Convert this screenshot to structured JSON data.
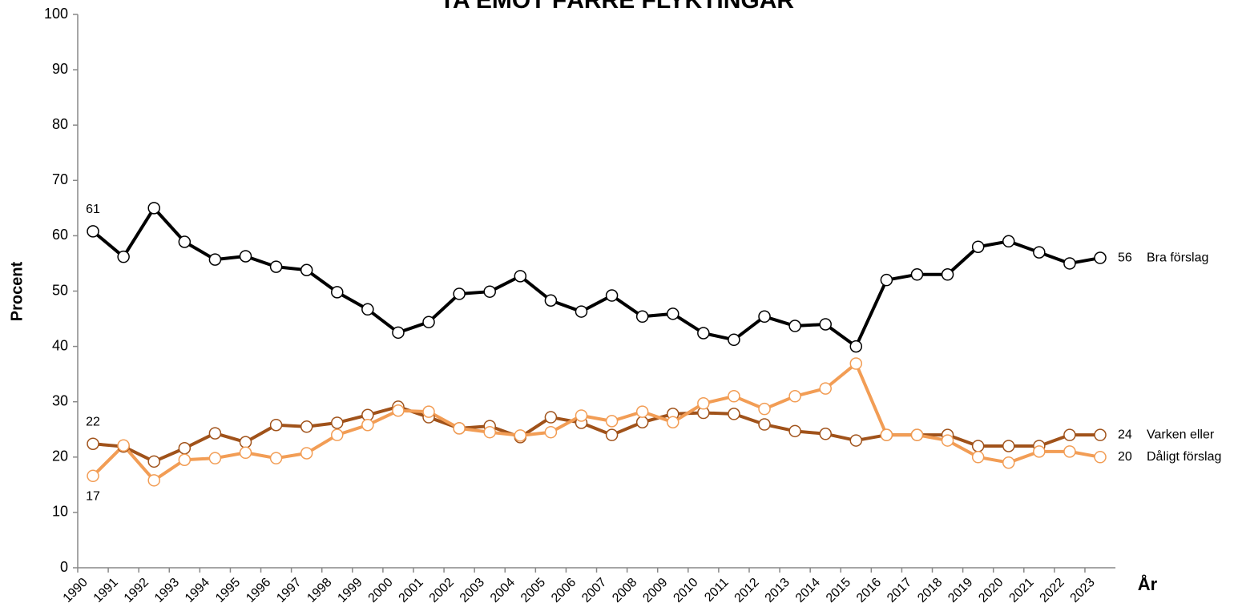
{
  "chart_data": {
    "type": "line",
    "title": "TA EMOT FÄRRE FLYKTINGAR",
    "x_label": "År",
    "y_label": "Procent",
    "categories": [
      "1990",
      "1991",
      "1992",
      "1993",
      "1994",
      "1995",
      "1996",
      "1997",
      "1998",
      "1999",
      "2000",
      "2001",
      "2002",
      "2003",
      "2004",
      "2005",
      "2006",
      "2007",
      "2008",
      "2009",
      "2010",
      "2011",
      "2012",
      "2013",
      "2014",
      "2015",
      "2016",
      "2017",
      "2018",
      "2019",
      "2020",
      "2021",
      "2022",
      "2023"
    ],
    "ylim": [
      0,
      100
    ],
    "yticks": [
      0,
      10,
      20,
      30,
      40,
      50,
      60,
      70,
      80,
      90,
      100
    ],
    "grid": false,
    "series": [
      {
        "name": "Bra förslag",
        "color": "#000000",
        "start_label": "61",
        "end_label": "56",
        "values": [
          60.8,
          56.2,
          65,
          58.9,
          55.7,
          56.3,
          54.4,
          53.8,
          49.8,
          46.7,
          42.5,
          44.4,
          49.5,
          49.9,
          52.7,
          48.3,
          46.3,
          49.2,
          45.4,
          45.9,
          42.4,
          41.2,
          45.4,
          43.7,
          44,
          40,
          52,
          53,
          53,
          58,
          59,
          57,
          55,
          56
        ]
      },
      {
        "name": "Varken eller",
        "color": "#a0521a",
        "start_label": "22",
        "end_label": "24",
        "values": [
          22.4,
          21.9,
          19.2,
          21.6,
          24.3,
          22.7,
          25.8,
          25.5,
          26.2,
          27.6,
          29.1,
          27.2,
          25.2,
          25.6,
          23.6,
          27.2,
          26.2,
          24,
          26.3,
          27.8,
          28,
          27.8,
          25.9,
          24.7,
          24.2,
          23,
          24,
          24,
          24,
          22,
          22,
          22,
          24,
          24
        ]
      },
      {
        "name": "Dåligt förslag",
        "color": "#f29d55",
        "start_label": "17",
        "end_label": "20",
        "values": [
          16.6,
          22.1,
          15.8,
          19.5,
          19.8,
          20.8,
          19.8,
          20.7,
          24,
          25.8,
          28.4,
          28.2,
          25.2,
          24.5,
          23.9,
          24.5,
          27.5,
          26.5,
          28.2,
          26.3,
          29.7,
          31,
          28.7,
          31,
          32.4,
          36.9,
          24,
          24,
          23,
          20,
          19,
          21,
          21,
          20
        ]
      }
    ]
  }
}
